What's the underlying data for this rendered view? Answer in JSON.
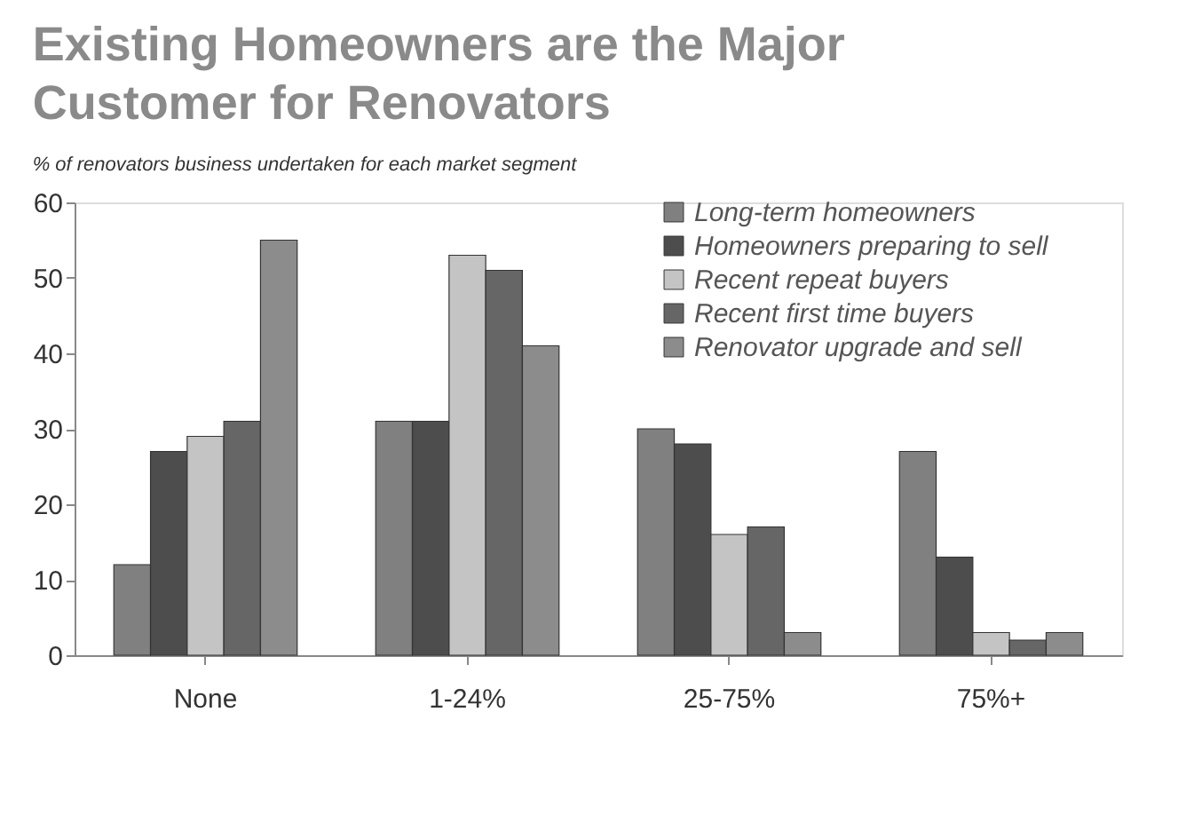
{
  "chart_data": {
    "type": "bar",
    "title": "Existing Homeowners are the Major Customer for Renovators",
    "subtitle": "% of renovators business undertaken for each market segment",
    "categories": [
      "None",
      "1-24%",
      "25-75%",
      "75%+"
    ],
    "series": [
      {
        "name": "Long-term homeowners",
        "color": "#808080",
        "values": [
          12,
          31,
          30,
          27
        ]
      },
      {
        "name": "Homeowners preparing to sell",
        "color": "#4d4d4d",
        "values": [
          27,
          31,
          28,
          13
        ]
      },
      {
        "name": "Recent repeat buyers",
        "color": "#c4c4c4",
        "values": [
          29,
          53,
          16,
          3
        ]
      },
      {
        "name": "Recent first time buyers",
        "color": "#666666",
        "values": [
          31,
          51,
          17,
          2
        ]
      },
      {
        "name": "Renovator upgrade and sell",
        "color": "#8c8c8c",
        "values": [
          55,
          41,
          3,
          3
        ]
      }
    ],
    "ylim": [
      0,
      60
    ],
    "yticks": [
      0,
      10,
      20,
      30,
      40,
      50,
      60
    ],
    "grid": false,
    "legend": "top right"
  }
}
